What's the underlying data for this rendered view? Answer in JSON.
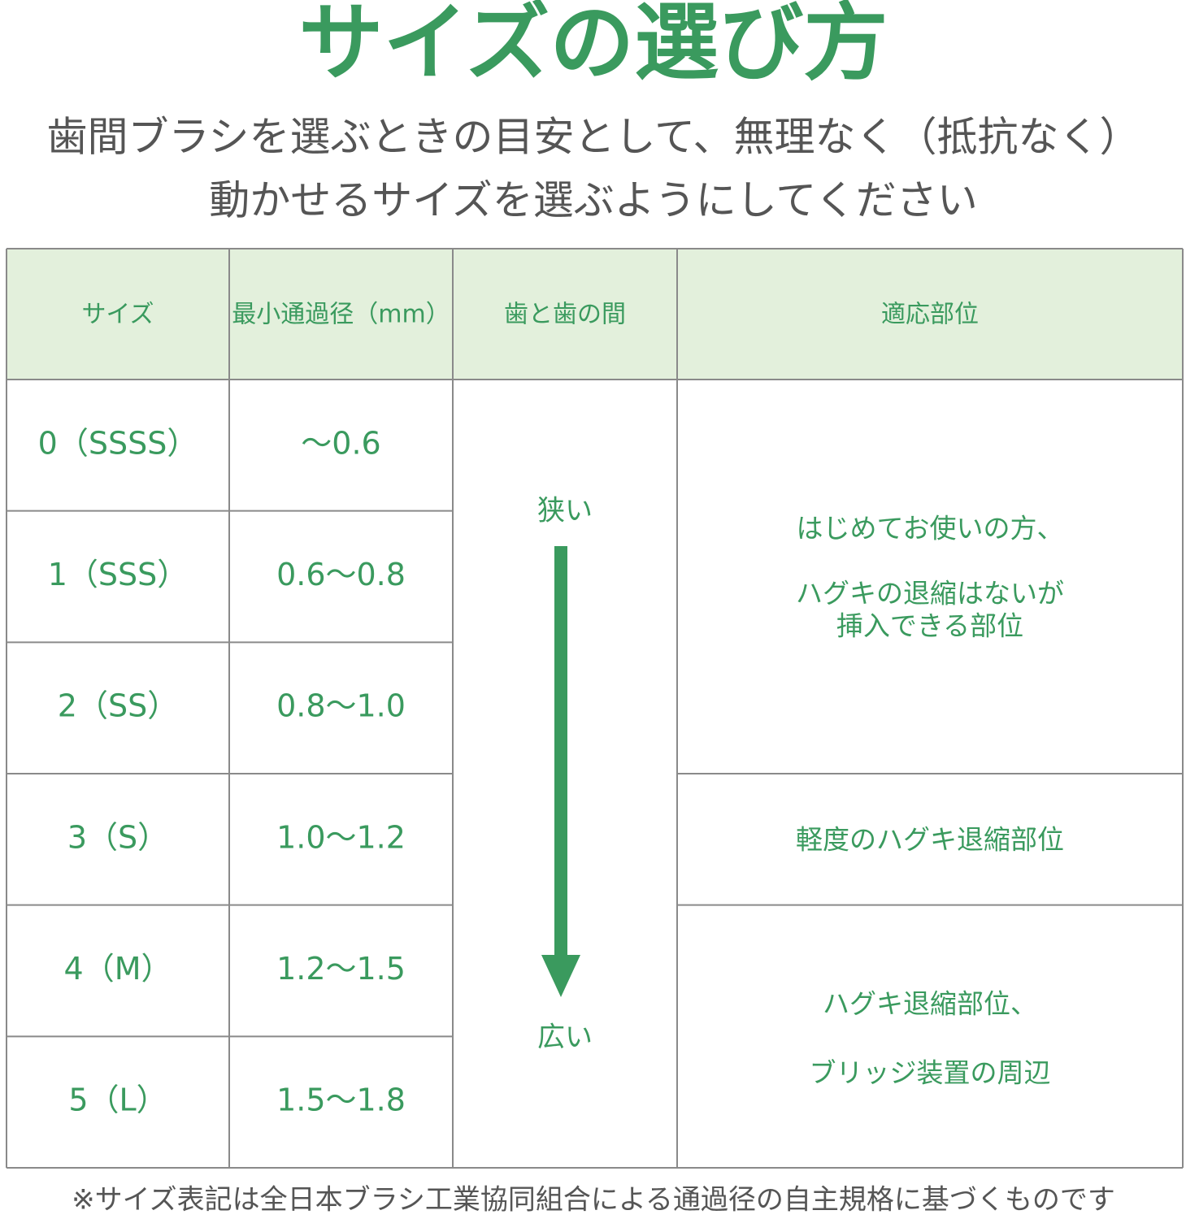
{
  "title": "サイズの選び方",
  "subtitle": [
    "歯間ブラシを選ぶときの目安として、無理なく（抵抗なく）",
    "動かせるサイズを選ぶようにしてください"
  ],
  "table": {
    "header": [
      "サイズ",
      "最小通過径（mm）",
      "歯と歯の間",
      "適応部位"
    ],
    "rows": [
      [
        "0（SSSS）",
        "～0.6"
      ],
      [
        "1（SSS）",
        "0.6～0.8"
      ],
      [
        "2（SS）",
        "0.8～1.0"
      ],
      [
        "3（S）",
        "1.0～1.2"
      ],
      [
        "4（M）",
        "1.2～1.5"
      ],
      [
        "5（L）",
        "1.5～1.8"
      ]
    ],
    "gap": [
      "狭い",
      "広い"
    ],
    "areas": [
      [
        "はじめてお使いの方、",
        "ハグキの退縮はないが",
        "挿入できる部位"
      ],
      [
        "軽度のハグキ退縮部位"
      ],
      [
        "ハグキ退縮部位、",
        "ブリッジ装置の周辺"
      ]
    ]
  },
  "footnote": "※サイズ表記は全日本ブラシ工業協同組合による通過径の自主規格に基づくものです"
}
